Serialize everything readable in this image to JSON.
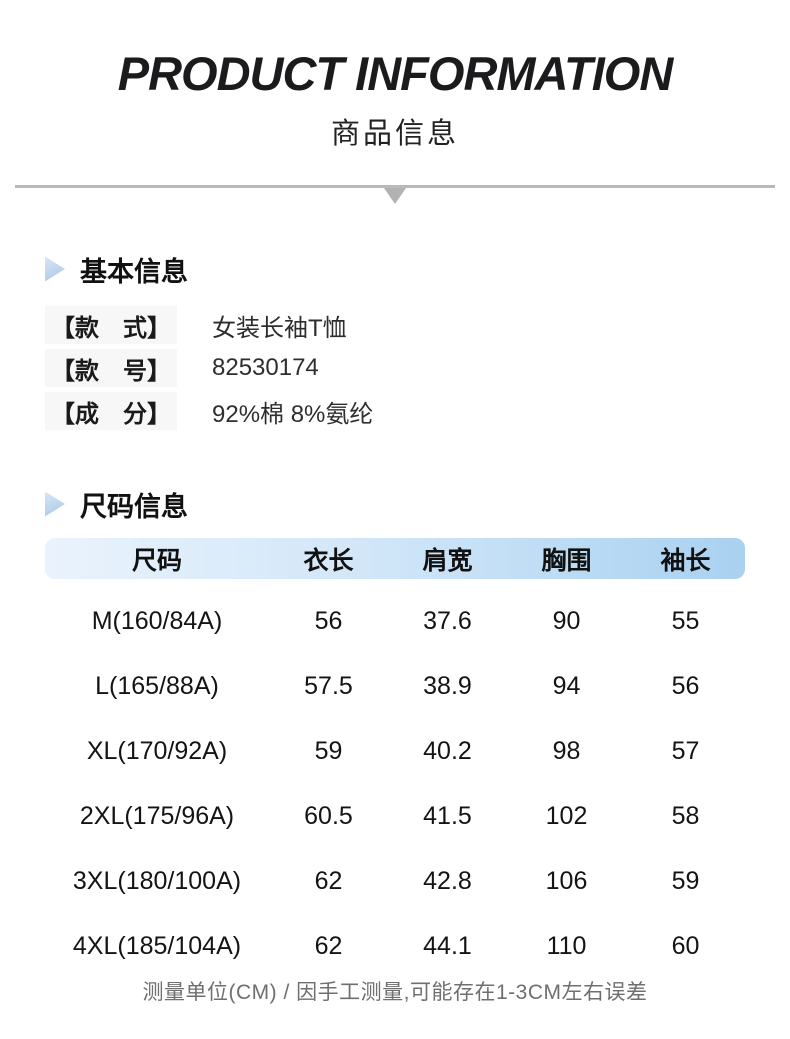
{
  "page": {
    "title": "PRODUCT INFORMATION",
    "subtitle": "商品信息"
  },
  "basic_info": {
    "section_title": "基本信息",
    "rows": [
      {
        "label": "【款　式】",
        "value": "女装长袖T恤"
      },
      {
        "label": "【款　号】",
        "value": "82530174"
      },
      {
        "label": "【成　分】",
        "value": "92%棉 8%氨纶"
      }
    ]
  },
  "size_info": {
    "section_title": "尺码信息",
    "table": {
      "headers": [
        "尺码",
        "衣长",
        "肩宽",
        "胸围",
        "袖长"
      ],
      "rows": [
        [
          "M(160/84A)",
          "56",
          "37.6",
          "90",
          "55"
        ],
        [
          "L(165/88A)",
          "57.5",
          "38.9",
          "94",
          "56"
        ],
        [
          "XL(170/92A)",
          "59",
          "40.2",
          "98",
          "57"
        ],
        [
          "2XL(175/96A)",
          "60.5",
          "41.5",
          "102",
          "58"
        ],
        [
          "3XL(180/100A)",
          "62",
          "42.8",
          "106",
          "59"
        ],
        [
          "4XL(185/104A)",
          "62",
          "44.1",
          "110",
          "60"
        ]
      ]
    },
    "note": "测量单位(CM) / 因手工测量,可能存在1-3CM左右误差"
  },
  "colors": {
    "table_header_gradient_start": "#eaf3fc",
    "table_header_gradient_end": "#a9d1f0",
    "section_bullet": "#b7cfe9",
    "divider": "#bababa",
    "label_background": "#f7f7f7",
    "note_text": "#6f6f6f"
  }
}
